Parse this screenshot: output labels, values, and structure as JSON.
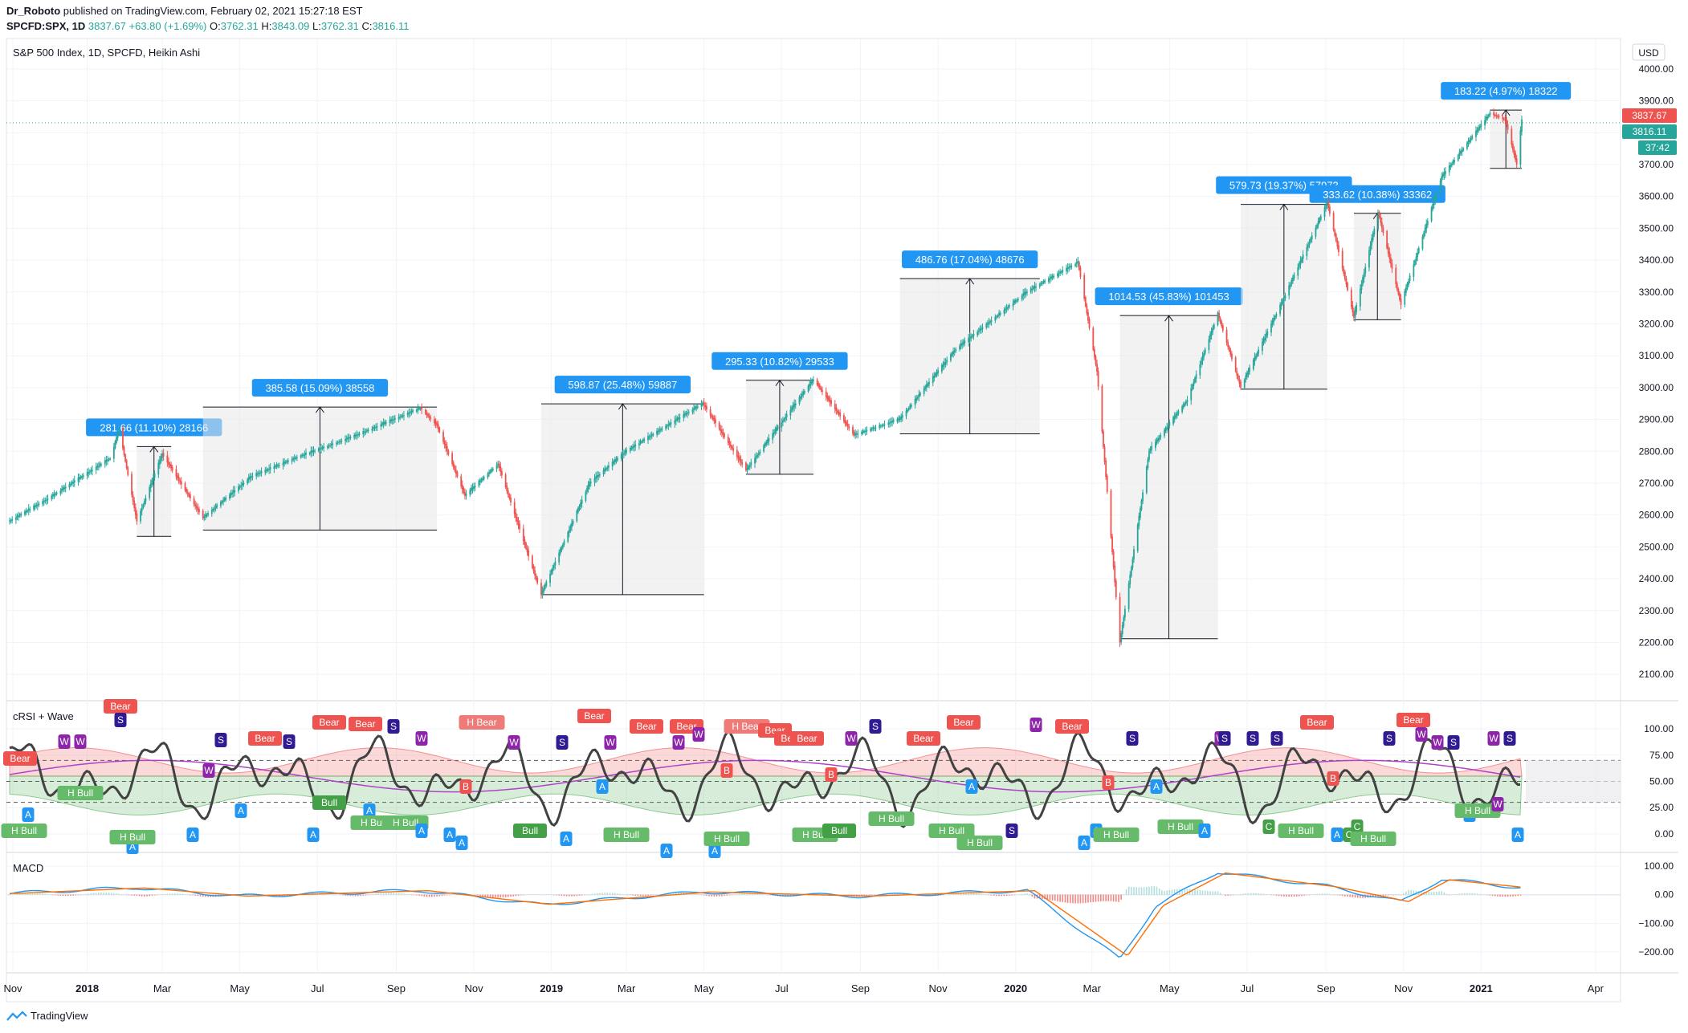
{
  "header": {
    "author": "Dr_Roboto",
    "published_text": "published on TradingView.com, February 02, 2021 15:27:18 EST",
    "symbol": "SPCFD:SPX, 1D",
    "last": "3837.67",
    "change": "+63.80 (+1.69%)",
    "o_label": "O:",
    "o": "3762.31",
    "h_label": "H:",
    "h": "3843.09",
    "l_label": "L:",
    "l": "3762.31",
    "c_label": "C:",
    "c": "3816.11"
  },
  "main_title": "S&P 500 Index, 1D, SPCFD, Heikin Ashi",
  "currency": "USD",
  "price_tags": {
    "last": "3837.67",
    "close": "3816.11",
    "countdown": "37:42"
  },
  "colors": {
    "up": "#26a69a",
    "down": "#ef5350",
    "accent": "#2196f3",
    "panel_line": "#e0e3eb"
  },
  "footer": {
    "brand": "TradingView"
  },
  "chart_data": [
    {
      "type": "line",
      "name": "price",
      "title": "S&P 500 Index, 1D, SPCFD, Heikin Ashi",
      "ylim": [
        2050,
        4020
      ],
      "yticks": [
        2100,
        2200,
        2300,
        2400,
        2500,
        2600,
        2700,
        2800,
        2900,
        3000,
        3100,
        3200,
        3300,
        3400,
        3500,
        3600,
        3700,
        3800,
        3900,
        4000
      ],
      "ytick_labels": [
        "2100.00",
        "2200.00",
        "2300.00",
        "2400.00",
        "2500.00",
        "2600.00",
        "2700.00",
        "2800.00",
        "2900.00",
        "3000.00",
        "3100.00",
        "3200.00",
        "3300.00",
        "3400.00",
        "3500.00",
        "3600.00",
        "3700.00",
        "3800.00",
        "3900.00",
        "4000.00"
      ],
      "x": [
        "2017-11-01",
        "2017-12-01",
        "2018-01-20",
        "2018-01-26",
        "2018-02-09",
        "2018-03-01",
        "2018-04-02",
        "2018-05-10",
        "2018-06-15",
        "2018-08-01",
        "2018-09-20",
        "2018-10-03",
        "2018-10-25",
        "2018-11-20",
        "2018-12-24",
        "2019-01-31",
        "2019-03-01",
        "2019-04-30",
        "2019-06-03",
        "2019-07-26",
        "2019-08-27",
        "2019-10-02",
        "2019-11-15",
        "2020-01-10",
        "2020-02-19",
        "2020-03-05",
        "2020-03-23",
        "2020-04-15",
        "2020-05-15",
        "2020-06-08",
        "2020-06-26",
        "2020-07-30",
        "2020-09-02",
        "2020-09-23",
        "2020-10-12",
        "2020-10-30",
        "2020-12-01",
        "2021-01-08",
        "2021-01-20",
        "2021-01-29",
        "2021-02-02"
      ],
      "y": [
        2580,
        2650,
        2780,
        2872,
        2580,
        2790,
        2590,
        2720,
        2780,
        2850,
        2935,
        2880,
        2660,
        2760,
        2350,
        2700,
        2800,
        2950,
        2740,
        3025,
        2850,
        2900,
        3120,
        3300,
        3393,
        3050,
        2200,
        2800,
        2960,
        3230,
        3000,
        3280,
        3580,
        3220,
        3550,
        3260,
        3660,
        3860,
        3840,
        3700,
        3837
      ],
      "measurements": [
        {
          "label": "281.66 (11.10%) 28166",
          "from": "2018-02-09",
          "to": "2018-03-08",
          "low": 2533,
          "high": 2815
        },
        {
          "label": "385.58 (15.09%) 38558",
          "from": "2018-04-02",
          "to": "2018-10-03",
          "low": 2553,
          "high": 2939
        },
        {
          "label": "598.87 (25.48%) 59887",
          "from": "2018-12-24",
          "to": "2019-05-01",
          "low": 2350,
          "high": 2949
        },
        {
          "label": "295.33 (10.82%) 29533",
          "from": "2019-06-03",
          "to": "2019-07-26",
          "low": 2728,
          "high": 3023
        },
        {
          "label": "486.76 (17.04%) 48676",
          "from": "2019-10-02",
          "to": "2020-01-20",
          "low": 2855,
          "high": 3342
        },
        {
          "label": "1014.53 (45.83%) 101453",
          "from": "2020-03-23",
          "to": "2020-06-08",
          "low": 2212,
          "high": 3226
        },
        {
          "label": "579.73 (19.37%) 57973",
          "from": "2020-06-26",
          "to": "2020-09-02",
          "low": 2995,
          "high": 3575
        },
        {
          "label": "333.62 (10.38%) 33362",
          "from": "2020-09-23",
          "to": "2020-10-30",
          "low": 3213,
          "high": 3547
        },
        {
          "label": "183.22 (4.97%) 18322",
          "from": "2021-01-08",
          "to": "2021-02-02",
          "low": 3688,
          "high": 3871
        }
      ]
    },
    {
      "type": "line",
      "name": "cRSI + Wave",
      "title": "cRSI + Wave",
      "ylim": [
        -10,
        110
      ],
      "yticks": [
        0,
        25,
        50,
        75,
        100
      ],
      "ytick_labels": [
        "0.00",
        "25.00",
        "50.00",
        "75.00",
        "100.00"
      ],
      "bands": [
        30,
        50,
        70
      ],
      "signal_labels": [
        "Bear",
        "S",
        "W",
        "A",
        "Bull",
        "H Bull",
        "H Bear",
        "B",
        "C"
      ]
    },
    {
      "type": "line",
      "name": "MACD",
      "title": "MACD",
      "ylim": [
        -245,
        120
      ],
      "yticks": [
        100,
        0,
        -100,
        -200
      ],
      "ytick_labels": [
        "100.00",
        "0.00",
        "−100.00",
        "−200.00"
      ],
      "x": [
        "2017-11-01",
        "2018-02-09",
        "2018-05-01",
        "2018-09-20",
        "2018-12-24",
        "2019-04-30",
        "2019-09-01",
        "2020-01-10",
        "2020-03-23",
        "2020-04-20",
        "2020-06-08",
        "2020-09-02",
        "2020-10-30",
        "2020-12-01",
        "2021-02-02"
      ],
      "y": [
        5,
        25,
        -5,
        15,
        -35,
        10,
        -5,
        15,
        -225,
        -40,
        80,
        30,
        -25,
        55,
        25
      ]
    }
  ],
  "time_axis": [
    "Nov",
    "2018",
    "Mar",
    "May",
    "Jul",
    "Sep",
    "Nov",
    "2019",
    "Mar",
    "May",
    "Jul",
    "Sep",
    "Nov",
    "2020",
    "Mar",
    "May",
    "Jul",
    "Sep",
    "Nov",
    "2021",
    "Apr"
  ]
}
